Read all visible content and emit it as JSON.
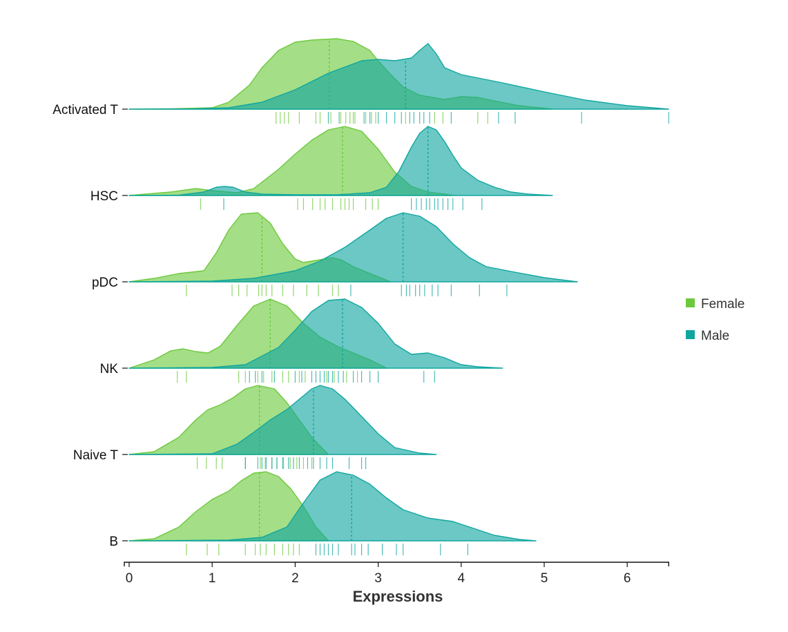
{
  "chart_data": {
    "type": "ridgeline",
    "xlabel": "Expressions",
    "ylabel": "",
    "title": "",
    "xlim": [
      0,
      6.5
    ],
    "x_ticks": [
      0,
      1,
      2,
      3,
      4,
      5,
      6
    ],
    "categories": [
      "Activated T",
      "HSC",
      "pDC",
      "NK",
      "Naive T",
      "B"
    ],
    "colors": {
      "Female": "#6cc93c",
      "Male": "#10a6a0"
    },
    "legend": {
      "position": "right",
      "entries": [
        "Female",
        "Male"
      ]
    },
    "series": [
      {
        "name": "Female",
        "groups": [
          {
            "category": "Activated T",
            "median": 2.41,
            "range": [
              0,
              5.1
            ],
            "density_x": [
              0,
              0.5,
              1.0,
              1.2,
              1.45,
              1.6,
              1.8,
              2.0,
              2.2,
              2.5,
              2.7,
              2.9,
              3.0,
              3.15,
              3.3,
              3.5,
              3.8,
              4.0,
              4.2,
              4.4,
              4.7,
              5.1
            ],
            "density_y": [
              0,
              0.005,
              0.02,
              0.1,
              0.35,
              0.6,
              0.85,
              0.97,
              1.0,
              1.02,
              0.98,
              0.85,
              0.7,
              0.5,
              0.32,
              0.2,
              0.14,
              0.18,
              0.17,
              0.12,
              0.05,
              0.0
            ],
            "rug": [
              1.77,
              1.82,
              1.87,
              1.92,
              2.05,
              2.25,
              2.3,
              2.43,
              2.55,
              2.61,
              2.66,
              2.7,
              2.72,
              2.85,
              2.92,
              2.97,
              3.33,
              3.68,
              3.78,
              4.2,
              4.32
            ]
          },
          {
            "category": "HSC",
            "median": 2.57,
            "range": [
              0,
              3.9
            ],
            "density_x": [
              0,
              0.5,
              0.8,
              1.0,
              1.3,
              1.5,
              1.8,
              2.0,
              2.2,
              2.4,
              2.6,
              2.8,
              3.0,
              3.2,
              3.4,
              3.6,
              3.8,
              3.9
            ],
            "density_y": [
              0,
              0.05,
              0.1,
              0.07,
              0.04,
              0.1,
              0.38,
              0.6,
              0.8,
              0.95,
              1.0,
              0.93,
              0.67,
              0.34,
              0.13,
              0.05,
              0.02,
              0.0
            ],
            "rug": [
              0.86,
              2.03,
              2.1,
              2.21,
              2.3,
              2.36,
              2.45,
              2.55,
              2.6,
              2.65,
              2.7,
              2.85,
              2.93,
              3.0
            ]
          },
          {
            "category": "pDC",
            "median": 1.6,
            "range": [
              0,
              3.15
            ],
            "density_x": [
              0,
              0.3,
              0.6,
              0.9,
              1.05,
              1.2,
              1.35,
              1.55,
              1.7,
              1.85,
              2.0,
              2.1,
              2.3,
              2.45,
              2.55,
              2.7,
              2.9,
              3.15
            ],
            "density_y": [
              0,
              0.05,
              0.12,
              0.16,
              0.42,
              0.75,
              0.98,
              1.0,
              0.85,
              0.55,
              0.33,
              0.28,
              0.32,
              0.35,
              0.32,
              0.22,
              0.12,
              0.0
            ],
            "rug": [
              0.69,
              1.24,
              1.32,
              1.42,
              1.56,
              1.6,
              1.65,
              1.72,
              1.85,
              1.98,
              2.14,
              2.28,
              2.45,
              2.52
            ]
          },
          {
            "category": "NK",
            "median": 1.7,
            "range": [
              0,
              3.1
            ],
            "density_x": [
              0,
              0.3,
              0.5,
              0.65,
              0.8,
              0.95,
              1.1,
              1.3,
              1.5,
              1.7,
              1.9,
              2.1,
              2.3,
              2.5,
              2.7,
              2.9,
              3.1
            ],
            "density_y": [
              0,
              0.12,
              0.25,
              0.28,
              0.24,
              0.22,
              0.32,
              0.62,
              0.9,
              1.0,
              0.9,
              0.65,
              0.45,
              0.32,
              0.22,
              0.12,
              0.0
            ],
            "rug": [
              0.58,
              0.69,
              1.32,
              1.4,
              1.55,
              1.62,
              1.72,
              1.85,
              1.92,
              2.05,
              2.12,
              2.38,
              2.47,
              2.62,
              2.75
            ]
          },
          {
            "category": "Naive T",
            "median": 1.57,
            "range": [
              0,
              2.4
            ],
            "density_x": [
              0,
              0.3,
              0.6,
              0.8,
              0.95,
              1.1,
              1.25,
              1.4,
              1.55,
              1.75,
              1.9,
              2.05,
              2.2,
              2.3,
              2.4
            ],
            "density_y": [
              0,
              0.04,
              0.25,
              0.5,
              0.65,
              0.72,
              0.82,
              0.95,
              1.0,
              0.95,
              0.75,
              0.5,
              0.25,
              0.12,
              0.0
            ],
            "rug": [
              0.82,
              0.93,
              1.05,
              1.12,
              1.4,
              1.58,
              1.64,
              1.72,
              1.78,
              1.86,
              1.94,
              2.02,
              2.1,
              2.2
            ]
          },
          {
            "category": "B",
            "median": 1.57,
            "range": [
              0,
              2.4
            ],
            "density_x": [
              0,
              0.3,
              0.6,
              0.8,
              1.0,
              1.2,
              1.35,
              1.5,
              1.65,
              1.8,
              1.95,
              2.1,
              2.25,
              2.4
            ],
            "density_y": [
              0,
              0.03,
              0.2,
              0.42,
              0.6,
              0.72,
              0.87,
              0.98,
              1.0,
              0.93,
              0.75,
              0.5,
              0.2,
              0.0
            ],
            "rug": [
              0.69,
              0.94,
              1.08,
              1.4,
              1.52,
              1.58,
              1.65,
              1.75,
              1.85,
              1.92,
              1.98,
              2.05
            ]
          }
        ]
      },
      {
        "name": "Male",
        "groups": [
          {
            "category": "Activated T",
            "median": 3.33,
            "range": [
              0,
              6.5
            ],
            "density_x": [
              0,
              0.8,
              1.2,
              1.6,
              2.0,
              2.4,
              2.8,
              3.0,
              3.2,
              3.4,
              3.5,
              3.6,
              3.7,
              3.8,
              4.0,
              4.5,
              5.0,
              5.5,
              6.0,
              6.5
            ],
            "density_y": [
              0,
              0.005,
              0.02,
              0.1,
              0.28,
              0.52,
              0.7,
              0.72,
              0.7,
              0.74,
              0.85,
              0.95,
              0.8,
              0.6,
              0.5,
              0.38,
              0.25,
              0.13,
              0.05,
              0.0
            ],
            "rug": [
              2.4,
              2.53,
              2.83,
              2.9,
              3.0,
              3.1,
              3.2,
              3.28,
              3.38,
              3.43,
              3.5,
              3.55,
              3.62,
              3.88,
              4.45,
              4.65,
              5.45,
              6.5
            ]
          },
          {
            "category": "HSC",
            "median": 3.6,
            "range": [
              0,
              5.1
            ],
            "density_x": [
              0,
              0.6,
              0.9,
              1.05,
              1.15,
              1.25,
              1.4,
              1.6,
              2.0,
              2.5,
              2.9,
              3.1,
              3.25,
              3.4,
              3.5,
              3.6,
              3.7,
              3.8,
              3.9,
              4.0,
              4.2,
              4.4,
              4.6,
              4.8,
              5.1
            ],
            "density_y": [
              0,
              0.005,
              0.05,
              0.12,
              0.13,
              0.12,
              0.05,
              0.02,
              0.01,
              0.01,
              0.04,
              0.12,
              0.35,
              0.7,
              0.9,
              1.0,
              0.95,
              0.78,
              0.58,
              0.4,
              0.22,
              0.12,
              0.05,
              0.02,
              0.0
            ],
            "rug": [
              1.14,
              3.4,
              3.46,
              3.52,
              3.58,
              3.62,
              3.68,
              3.72,
              3.78,
              3.84,
              3.9,
              4.02,
              4.25
            ]
          },
          {
            "category": "pDC",
            "median": 3.3,
            "range": [
              0,
              5.4
            ],
            "density_x": [
              0,
              1.0,
              1.5,
              2.0,
              2.3,
              2.6,
              2.9,
              3.1,
              3.3,
              3.5,
              3.7,
              3.9,
              4.1,
              4.3,
              4.6,
              5.0,
              5.4
            ],
            "density_y": [
              0,
              0.01,
              0.05,
              0.16,
              0.3,
              0.5,
              0.75,
              0.92,
              1.0,
              0.95,
              0.8,
              0.55,
              0.35,
              0.22,
              0.15,
              0.06,
              0.0
            ],
            "rug": [
              2.67,
              3.28,
              3.34,
              3.38,
              3.45,
              3.5,
              3.56,
              3.65,
              3.72,
              3.88,
              4.22,
              4.55
            ]
          },
          {
            "category": "NK",
            "median": 2.57,
            "range": [
              0,
              4.5
            ],
            "density_x": [
              0,
              1.0,
              1.4,
              1.8,
              2.0,
              2.2,
              2.4,
              2.6,
              2.8,
              3.0,
              3.2,
              3.4,
              3.6,
              3.8,
              4.0,
              4.2,
              4.5
            ],
            "density_y": [
              0,
              0.01,
              0.05,
              0.3,
              0.55,
              0.82,
              0.98,
              1.0,
              0.88,
              0.65,
              0.35,
              0.2,
              0.22,
              0.15,
              0.05,
              0.02,
              0.0
            ],
            "rug": [
              1.45,
              1.52,
              1.6,
              1.75,
              2.0,
              2.08,
              2.2,
              2.25,
              2.3,
              2.35,
              2.4,
              2.45,
              2.52,
              2.58,
              2.7,
              2.8,
              2.9,
              3.0,
              3.55,
              3.68
            ]
          },
          {
            "category": "Naive T",
            "median": 2.22,
            "range": [
              0,
              3.7
            ],
            "density_x": [
              0,
              1.0,
              1.3,
              1.5,
              1.7,
              1.9,
              2.05,
              2.2,
              2.3,
              2.45,
              2.6,
              2.8,
              3.0,
              3.2,
              3.5,
              3.7
            ],
            "density_y": [
              0,
              0.01,
              0.15,
              0.32,
              0.5,
              0.65,
              0.8,
              0.95,
              1.0,
              0.95,
              0.8,
              0.55,
              0.3,
              0.1,
              0.02,
              0.0
            ],
            "rug": [
              1.4,
              1.55,
              1.6,
              1.65,
              1.72,
              1.78,
              1.85,
              1.92,
              1.98,
              2.05,
              2.15,
              2.22,
              2.3,
              2.38,
              2.45,
              2.65,
              2.8,
              2.85
            ]
          },
          {
            "category": "B",
            "median": 2.68,
            "range": [
              0,
              4.9
            ],
            "density_x": [
              0,
              1.2,
              1.6,
              1.9,
              2.1,
              2.3,
              2.5,
              2.7,
              2.9,
              3.1,
              3.3,
              3.6,
              3.9,
              4.1,
              4.4,
              4.7,
              4.9
            ],
            "density_y": [
              0,
              0.01,
              0.05,
              0.2,
              0.55,
              0.88,
              1.0,
              0.95,
              0.82,
              0.62,
              0.45,
              0.33,
              0.28,
              0.2,
              0.08,
              0.02,
              0.0
            ],
            "rug": [
              2.25,
              2.3,
              2.35,
              2.4,
              2.45,
              2.52,
              2.68,
              2.72,
              2.8,
              2.88,
              3.05,
              3.22,
              3.3,
              3.75,
              4.08
            ]
          }
        ]
      }
    ]
  }
}
